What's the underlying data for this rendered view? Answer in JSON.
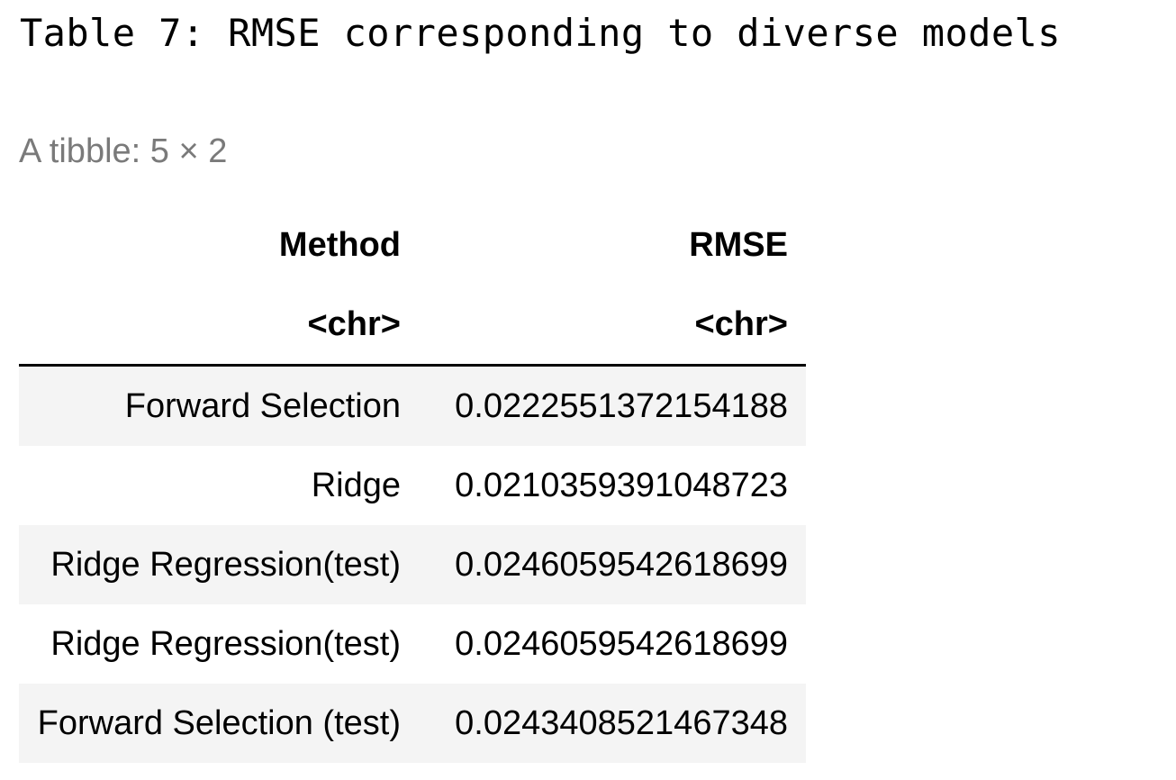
{
  "title": "Table 7: RMSE corresponding to diverse models",
  "caption": "A tibble: 5 × 2",
  "table": {
    "headers": [
      "Method",
      "RMSE"
    ],
    "types": [
      "<chr>",
      "<chr>"
    ],
    "rows": [
      [
        "Forward Selection",
        "0.0222551372154188"
      ],
      [
        "Ridge",
        "0.0210359391048723"
      ],
      [
        "Ridge Regression(test)",
        "0.0246059542618699"
      ],
      [
        "Ridge Regression(test)",
        "0.0246059542618699"
      ],
      [
        "Forward Selection (test)",
        "0.0243408521467348"
      ]
    ]
  }
}
